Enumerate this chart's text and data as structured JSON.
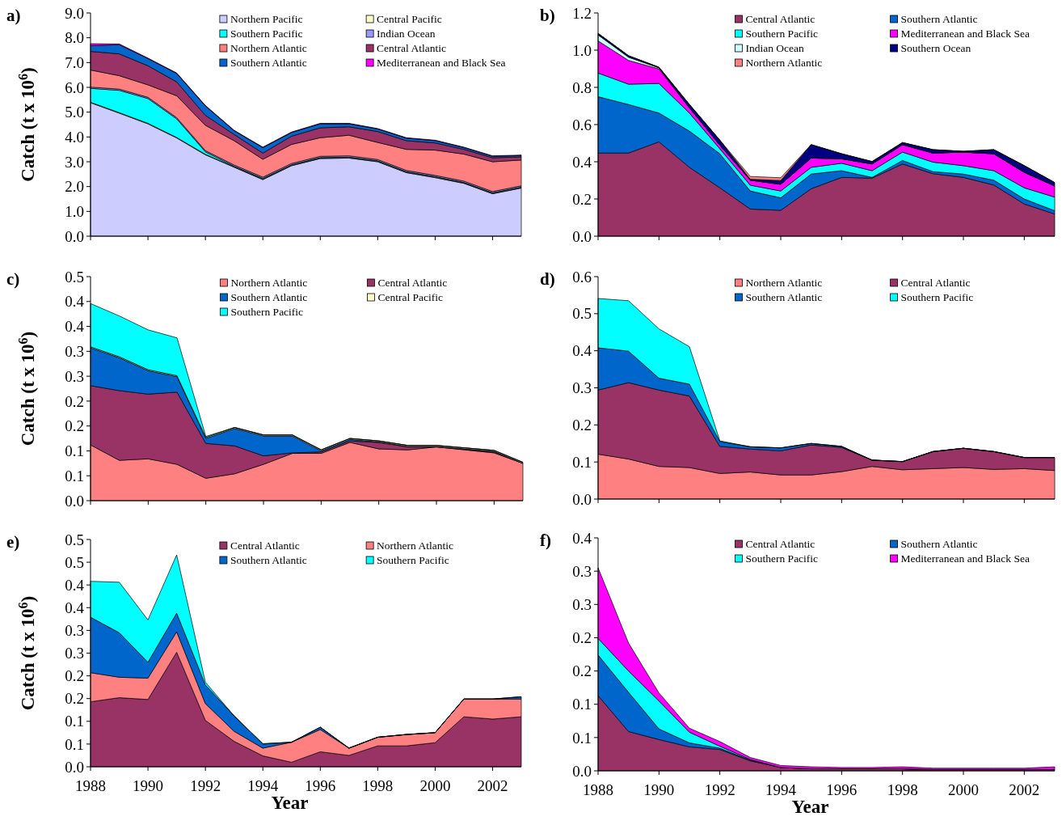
{
  "chart_data": [
    {
      "type": "area",
      "stacked": true,
      "title": "a)",
      "ylabel": "Catch (t x 10$^{6}$)",
      "x": [
        1988,
        1989,
        1990,
        1991,
        1992,
        1993,
        1994,
        1995,
        1996,
        1997,
        1998,
        1999,
        2000,
        2001,
        2002,
        2003
      ],
      "xlim": [
        1988,
        2003
      ],
      "xticks": [
        1988,
        1990,
        1992,
        1994,
        1996,
        1998,
        2000,
        2002
      ],
      "ylim": [
        0,
        9
      ],
      "yticks": [
        {
          "value": 0,
          "label": "0.0"
        },
        {
          "value": 1,
          "label": "1.0"
        },
        {
          "value": 2,
          "label": "2.0"
        },
        {
          "value": 3,
          "label": "3.0"
        },
        {
          "value": 4,
          "label": "4.0"
        },
        {
          "value": 5,
          "label": "5.0"
        },
        {
          "value": 6,
          "label": "6.0"
        },
        {
          "value": 7,
          "label": "7.0"
        },
        {
          "value": 8,
          "label": "8.0"
        },
        {
          "value": 9,
          "label": "9.0"
        }
      ],
      "tick_labels": "y",
      "legend": "top right",
      "series": [
        {
          "name": "Northern Pacific",
          "color": "#ccccff",
          "values": [
            5.38,
            4.96,
            4.53,
            3.96,
            3.28,
            2.78,
            2.28,
            2.84,
            3.13,
            3.15,
            3.0,
            2.56,
            2.36,
            2.13,
            1.71,
            1.94
          ]
        },
        {
          "name": "Central Pacific",
          "color": "#ffffcc",
          "values": [
            0.02,
            0.02,
            0.02,
            0.02,
            0.02,
            0.02,
            0.02,
            0.02,
            0.02,
            0.02,
            0.02,
            0.02,
            0.02,
            0.02,
            0.02,
            0.02
          ]
        },
        {
          "name": "Southern Pacific",
          "color": "#00ffff",
          "values": [
            0.56,
            0.9,
            1.0,
            0.75,
            0.1,
            0.02,
            0.03,
            0.02,
            0.02,
            0.02,
            0.02,
            0.02,
            0.02,
            0.02,
            0.02,
            0.02
          ]
        },
        {
          "name": "Indian Ocean",
          "color": "#9999ff",
          "values": [
            0.05,
            0.05,
            0.05,
            0.05,
            0.05,
            0.05,
            0.05,
            0.05,
            0.05,
            0.05,
            0.05,
            0.05,
            0.05,
            0.05,
            0.05,
            0.05
          ]
        },
        {
          "name": "Northern Atlantic",
          "color": "#ff8080",
          "values": [
            0.69,
            0.54,
            0.5,
            0.88,
            1.02,
            0.98,
            0.72,
            0.77,
            0.75,
            0.83,
            0.69,
            0.85,
            1.02,
            1.09,
            1.2,
            1.04
          ]
        },
        {
          "name": "Central Atlantic",
          "color": "#993366",
          "values": [
            0.75,
            0.88,
            0.77,
            0.56,
            0.4,
            0.25,
            0.25,
            0.33,
            0.4,
            0.34,
            0.44,
            0.35,
            0.29,
            0.19,
            0.16,
            0.13
          ]
        },
        {
          "name": "Southern Atlantic",
          "color": "#0066cc",
          "values": [
            0.23,
            0.37,
            0.29,
            0.34,
            0.38,
            0.15,
            0.22,
            0.15,
            0.16,
            0.12,
            0.1,
            0.1,
            0.09,
            0.07,
            0.06,
            0.05
          ]
        },
        {
          "name": "Mediterranean and Black Sea",
          "color": "#ff00ff",
          "values": [
            0.08,
            0.03,
            0.02,
            0.02,
            0.02,
            0.02,
            0.02,
            0.02,
            0.02,
            0.02,
            0.02,
            0.02,
            0.02,
            0.02,
            0.02,
            0.02
          ]
        }
      ]
    },
    {
      "type": "area",
      "stacked": true,
      "title": "b)",
      "x": [
        1988,
        1989,
        1990,
        1991,
        1992,
        1993,
        1994,
        1995,
        1996,
        1997,
        1998,
        1999,
        2000,
        2001,
        2002,
        2003
      ],
      "xlim": [
        1988,
        2003
      ],
      "xticks": [
        1988,
        1990,
        1992,
        1994,
        1996,
        1998,
        2000,
        2002
      ],
      "ylim": [
        0,
        1.2
      ],
      "yticks": [
        {
          "value": 0,
          "label": "0.0"
        },
        {
          "value": 0.2,
          "label": "0.2"
        },
        {
          "value": 0.4,
          "label": "0.4"
        },
        {
          "value": 0.6,
          "label": "0.6"
        },
        {
          "value": 0.8,
          "label": "0.8"
        },
        {
          "value": 1,
          "label": "1.0"
        },
        {
          "value": 1.2,
          "label": "1.2"
        }
      ],
      "tick_labels": "y",
      "legend": "top right",
      "series": [
        {
          "name": "Central Atlantic",
          "color": "#993366",
          "values": [
            0.447,
            0.447,
            0.507,
            0.37,
            0.26,
            0.146,
            0.139,
            0.255,
            0.316,
            0.312,
            0.388,
            0.336,
            0.316,
            0.275,
            0.173,
            0.119
          ]
        },
        {
          "name": "Southern Atlantic",
          "color": "#0066cc",
          "values": [
            0.303,
            0.261,
            0.155,
            0.195,
            0.183,
            0.097,
            0.067,
            0.079,
            0.036,
            0.004,
            0.019,
            0.011,
            0.018,
            0.026,
            0.027,
            0.018
          ]
        },
        {
          "name": "Southern Pacific",
          "color": "#00ffff",
          "values": [
            0.127,
            0.109,
            0.159,
            0.097,
            0.027,
            0.031,
            0.037,
            0.036,
            0.04,
            0.036,
            0.045,
            0.051,
            0.045,
            0.051,
            0.06,
            0.073
          ]
        },
        {
          "name": "Mediterranean and Black Sea",
          "color": "#ff00ff",
          "values": [
            0.173,
            0.128,
            0.078,
            0.028,
            0.019,
            0.027,
            0.036,
            0.05,
            0.024,
            0.036,
            0.04,
            0.049,
            0.073,
            0.091,
            0.083,
            0.06
          ]
        },
        {
          "name": "Indian Ocean",
          "color": "#ccffff",
          "values": [
            0.032,
            0.017,
            0.006,
            0,
            0,
            0,
            0,
            0,
            0,
            0,
            0,
            0,
            0,
            0,
            0,
            0
          ]
        },
        {
          "name": "Southern Ocean",
          "color": "#000080",
          "values": [
            0.008,
            0.008,
            0.003,
            0.018,
            0.027,
            0.005,
            0.02,
            0.072,
            0.027,
            0.013,
            0.011,
            0.018,
            0.004,
            0.022,
            0.036,
            0.018
          ]
        },
        {
          "name": "Northern Atlantic",
          "color": "#ff8080",
          "values": [
            0,
            0,
            0,
            0,
            0,
            0.015,
            0.015,
            0,
            0,
            0,
            0,
            0,
            0,
            0,
            0,
            0
          ]
        }
      ]
    },
    {
      "type": "area",
      "stacked": true,
      "title": "c)",
      "ylabel": "Catch (t x 10$^{6}$)",
      "x": [
        1988,
        1989,
        1990,
        1991,
        1992,
        1993,
        1994,
        1995,
        1996,
        1997,
        1998,
        1999,
        2000,
        2001,
        2002,
        2003
      ],
      "xlim": [
        1988,
        2003
      ],
      "xticks": [
        1988,
        1990,
        1992,
        1994,
        1996,
        1998,
        2000,
        2002
      ],
      "ylim": [
        0,
        0.45
      ],
      "yticks": [
        {
          "value": 0,
          "label": "0.0"
        },
        {
          "value": 0.05,
          "label": "0.1"
        },
        {
          "value": 0.1,
          "label": "0.1"
        },
        {
          "value": 0.15,
          "label": "0.2"
        },
        {
          "value": 0.2,
          "label": "0.2"
        },
        {
          "value": 0.25,
          "label": "0.3"
        },
        {
          "value": 0.3,
          "label": "0.3"
        },
        {
          "value": 0.35,
          "label": "0.4"
        },
        {
          "value": 0.4,
          "label": "0.4"
        },
        {
          "value": 0.45,
          "label": "0.5"
        }
      ],
      "tick_labels": "y",
      "legend": "top right",
      "series": [
        {
          "name": "Northern Atlantic",
          "color": "#ff8080",
          "values": [
            0.112,
            0.081,
            0.084,
            0.073,
            0.045,
            0.054,
            0.073,
            0.095,
            0.095,
            0.117,
            0.104,
            0.102,
            0.108,
            0.102,
            0.096,
            0.075
          ]
        },
        {
          "name": "Central Atlantic",
          "color": "#993366",
          "values": [
            0.119,
            0.14,
            0.13,
            0.145,
            0.07,
            0.056,
            0.017,
            0.001,
            0.003,
            0.003,
            0.013,
            0.006,
            0,
            0.001,
            0.002,
            0
          ]
        },
        {
          "name": "Southern Atlantic",
          "color": "#0066cc",
          "values": [
            0.076,
            0.066,
            0.047,
            0.031,
            0.01,
            0.035,
            0.04,
            0.034,
            0.002,
            0.003,
            0.001,
            0.001,
            0.001,
            0.001,
            0.001,
            0
          ]
        },
        {
          "name": "Central Pacific",
          "color": "#ffffcc",
          "values": [
            0.002,
            0.002,
            0.002,
            0.002,
            0.002,
            0.002,
            0.002,
            0.002,
            0.002,
            0.002,
            0.002,
            0.002,
            0.002,
            0.002,
            0.002,
            0.002
          ]
        },
        {
          "name": "Southern Pacific",
          "color": "#00ffff",
          "values": [
            0.087,
            0.082,
            0.08,
            0.076,
            0.002,
            0,
            0,
            0,
            0,
            0,
            0,
            0,
            0,
            0,
            0,
            0
          ]
        }
      ]
    },
    {
      "type": "area",
      "stacked": true,
      "title": "d)",
      "x": [
        1988,
        1989,
        1990,
        1991,
        1992,
        1993,
        1994,
        1995,
        1996,
        1997,
        1998,
        1999,
        2000,
        2001,
        2002,
        2003
      ],
      "xlim": [
        1988,
        2003
      ],
      "xticks": [
        1988,
        1990,
        1992,
        1994,
        1996,
        1998,
        2000,
        2002
      ],
      "ylim": [
        0,
        0.6
      ],
      "yticks": [
        {
          "value": 0,
          "label": "0.0"
        },
        {
          "value": 0.1,
          "label": "0.1"
        },
        {
          "value": 0.2,
          "label": "0.2"
        },
        {
          "value": 0.3,
          "label": "0.3"
        },
        {
          "value": 0.4,
          "label": "0.4"
        },
        {
          "value": 0.5,
          "label": "0.5"
        },
        {
          "value": 0.6,
          "label": "0.6"
        }
      ],
      "tick_labels": "y",
      "legend": "top right",
      "series": [
        {
          "name": "Northern Atlantic",
          "color": "#ff8080",
          "values": [
            0.121,
            0.108,
            0.088,
            0.085,
            0.069,
            0.073,
            0.065,
            0.065,
            0.074,
            0.088,
            0.079,
            0.082,
            0.085,
            0.08,
            0.082,
            0.077
          ]
        },
        {
          "name": "Central Atlantic",
          "color": "#993366",
          "values": [
            0.173,
            0.206,
            0.206,
            0.193,
            0.073,
            0.062,
            0.065,
            0.081,
            0.065,
            0.017,
            0.022,
            0.046,
            0.052,
            0.048,
            0.03,
            0.035
          ]
        },
        {
          "name": "Southern Atlantic",
          "color": "#0066cc",
          "values": [
            0.114,
            0.085,
            0.032,
            0.032,
            0.013,
            0.006,
            0.008,
            0.004,
            0.003,
            0,
            0,
            0,
            0,
            0,
            0,
            0
          ]
        },
        {
          "name": "Southern Pacific",
          "color": "#00ffff",
          "values": [
            0.133,
            0.136,
            0.133,
            0.101,
            0.002,
            0,
            0,
            0,
            0,
            0,
            0,
            0,
            0,
            0,
            0,
            0
          ]
        }
      ]
    },
    {
      "type": "area",
      "stacked": true,
      "title": "e)",
      "ylabel": "Catch (t x 10$^{6}$)",
      "xlabel": "Year",
      "x": [
        1988,
        1989,
        1990,
        1991,
        1992,
        1993,
        1994,
        1995,
        1996,
        1997,
        1998,
        1999,
        2000,
        2001,
        2002,
        2003
      ],
      "xlim": [
        1988,
        2003
      ],
      "xticks": [
        1988,
        1990,
        1992,
        1994,
        1996,
        1998,
        2000,
        2002
      ],
      "ylim": [
        0,
        0.5
      ],
      "yticks": [
        {
          "value": 0,
          "label": "0.0"
        },
        {
          "value": 0.05,
          "label": "0.1"
        },
        {
          "value": 0.1,
          "label": "0.1"
        },
        {
          "value": 0.15,
          "label": "0.2"
        },
        {
          "value": 0.2,
          "label": "0.2"
        },
        {
          "value": 0.25,
          "label": "0.3"
        },
        {
          "value": 0.3,
          "label": "0.3"
        },
        {
          "value": 0.35,
          "label": "0.4"
        },
        {
          "value": 0.4,
          "label": "0.4"
        },
        {
          "value": 0.45,
          "label": "0.5"
        },
        {
          "value": 0.5,
          "label": "0.5"
        }
      ],
      "legend": "top right",
      "series": [
        {
          "name": "Central Atlantic",
          "color": "#993366",
          "values": [
            0.143,
            0.152,
            0.148,
            0.252,
            0.102,
            0.056,
            0.024,
            0.01,
            0.033,
            0.025,
            0.046,
            0.046,
            0.053,
            0.11,
            0.105,
            0.11
          ]
        },
        {
          "name": "Northern Atlantic",
          "color": "#ff8080",
          "values": [
            0.064,
            0.045,
            0.047,
            0.045,
            0.037,
            0.022,
            0.017,
            0.044,
            0.049,
            0.016,
            0.019,
            0.025,
            0.022,
            0.039,
            0.044,
            0.039
          ]
        },
        {
          "name": "Southern Atlantic",
          "color": "#0066cc",
          "values": [
            0.122,
            0.098,
            0.035,
            0.041,
            0.041,
            0.034,
            0.009,
            0,
            0.005,
            0,
            0,
            0,
            0,
            0,
            0,
            0.005
          ]
        },
        {
          "name": "Southern Pacific",
          "color": "#00ffff",
          "values": [
            0.079,
            0.111,
            0.093,
            0.128,
            0.006,
            0,
            0.001,
            0,
            0,
            0,
            0,
            0,
            0,
            0,
            0,
            0
          ]
        }
      ]
    },
    {
      "type": "area",
      "stacked": true,
      "title": "f)",
      "xlabel": "Year",
      "x": [
        1988,
        1989,
        1990,
        1991,
        1992,
        1993,
        1994,
        1995,
        1996,
        1997,
        1998,
        1999,
        2000,
        2001,
        2002,
        2003
      ],
      "xlim": [
        1988,
        2003
      ],
      "xticks": [
        1988,
        1990,
        1992,
        1994,
        1996,
        1998,
        2000,
        2002
      ],
      "ylim": [
        0,
        0.35
      ],
      "yticks": [
        {
          "value": 0,
          "label": "0.0"
        },
        {
          "value": 0.05,
          "label": "0.1"
        },
        {
          "value": 0.1,
          "label": "0.1"
        },
        {
          "value": 0.15,
          "label": "0.2"
        },
        {
          "value": 0.2,
          "label": "0.2"
        },
        {
          "value": 0.25,
          "label": "0.3"
        },
        {
          "value": 0.3,
          "label": "0.3"
        },
        {
          "value": 0.35,
          "label": "0.4"
        }
      ],
      "legend": "top right",
      "series": [
        {
          "name": "Central Atlantic",
          "color": "#993366",
          "values": [
            0.113,
            0.059,
            0.047,
            0.036,
            0.032,
            0.015,
            0.005,
            0.003,
            0.003,
            0.003,
            0.003,
            0.002,
            0.002,
            0.002,
            0.002,
            0.002
          ]
        },
        {
          "name": "Southern Atlantic",
          "color": "#0066cc",
          "values": [
            0.061,
            0.059,
            0.016,
            0.006,
            0.002,
            0.001,
            0,
            0,
            0,
            0,
            0,
            0,
            0,
            0,
            0,
            0
          ]
        },
        {
          "name": "Southern Pacific",
          "color": "#00ffff",
          "values": [
            0.025,
            0.032,
            0.042,
            0.016,
            0.003,
            0.001,
            0,
            0,
            0,
            0,
            0,
            0,
            0,
            0,
            0,
            0
          ]
        },
        {
          "name": "Mediterranean and Black Sea",
          "color": "#ff00ff",
          "values": [
            0.106,
            0.042,
            0.012,
            0.006,
            0.007,
            0.003,
            0.003,
            0.003,
            0.002,
            0.002,
            0.003,
            0.002,
            0.002,
            0.002,
            0.002,
            0.004
          ]
        }
      ]
    }
  ]
}
